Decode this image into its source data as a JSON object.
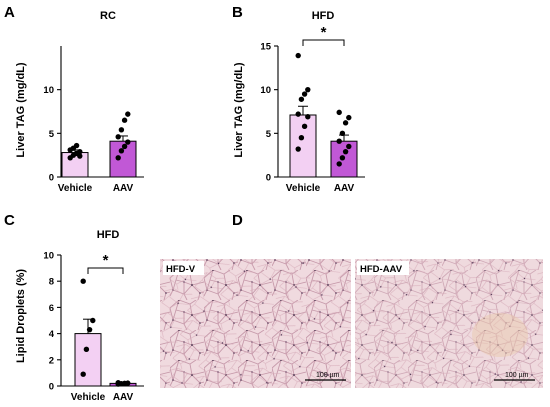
{
  "panels": [
    {
      "letter": "A",
      "title": "RC"
    },
    {
      "letter": "B",
      "title": "HFD"
    },
    {
      "letter": "C",
      "title": "HFD"
    },
    {
      "letter": "D"
    }
  ],
  "colors": {
    "vehicle": "#f3d0f3",
    "aav": "#c158d6",
    "bar_edge": "#000000"
  },
  "chart_data": [
    {
      "id": "A",
      "type": "bar",
      "title": "RC",
      "ylabel": "Liver TAG (mg/dL)",
      "ylim": [
        0,
        15
      ],
      "yticks": [
        0,
        5,
        10
      ],
      "categories": [
        "Vehicle",
        "AAV"
      ],
      "values": [
        2.8,
        4.1
      ],
      "sem": [
        0.3,
        0.6
      ],
      "points": [
        [
          2.2,
          2.5,
          2.7,
          2.9,
          3.1,
          3.3,
          3.6,
          2.4
        ],
        [
          2.2,
          3.0,
          3.5,
          4.0,
          4.6,
          5.4,
          6.5,
          7.2
        ]
      ],
      "significance": null
    },
    {
      "id": "B",
      "type": "bar",
      "title": "HFD",
      "ylabel": "Liver TAG (mg/dL)",
      "ylim": [
        0,
        15
      ],
      "yticks": [
        0,
        5,
        10,
        15
      ],
      "categories": [
        "Vehicle",
        "AAV"
      ],
      "values": [
        7.1,
        4.1
      ],
      "sem": [
        1.0,
        0.7
      ],
      "points": [
        [
          3.2,
          4.5,
          5.8,
          6.9,
          7.2,
          8.9,
          9.5,
          10.0,
          13.9
        ],
        [
          1.5,
          2.2,
          2.9,
          3.5,
          4.1,
          5.0,
          6.2,
          6.8,
          7.4
        ]
      ],
      "significance": "*"
    },
    {
      "id": "C",
      "type": "bar",
      "title": "HFD",
      "ylabel": "Lipid Droplets (%)",
      "ylim": [
        0,
        10
      ],
      "yticks": [
        0,
        2,
        4,
        6,
        8,
        10
      ],
      "categories": [
        "Vehicle",
        "AAV"
      ],
      "values": [
        4.0,
        0.2
      ],
      "sem": [
        1.1,
        0.04
      ],
      "points": [
        [
          0.9,
          2.8,
          4.3,
          5.0,
          8.0
        ],
        [
          0.15,
          0.18,
          0.2,
          0.22,
          0.25
        ]
      ],
      "significance": "*"
    }
  ],
  "micrographs": [
    {
      "label": "HFD-V",
      "scale_bar": "100 µm"
    },
    {
      "label": "HFD-AAV",
      "scale_bar": "100 µm"
    }
  ]
}
